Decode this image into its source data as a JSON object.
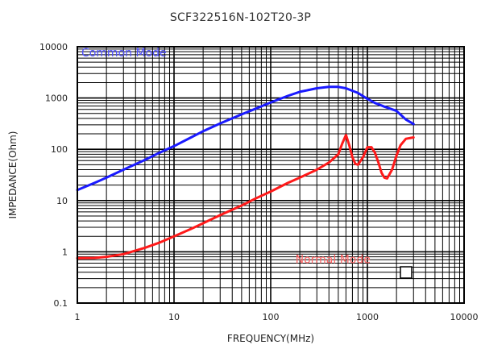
{
  "chart_data": {
    "type": "line",
    "title": "SCF322516N-102T20-3P",
    "xlabel": "FREQUENCY(MHz)",
    "ylabel": "IMPEDANCE(Ohm)",
    "x_scale": "log",
    "y_scale": "log",
    "xlim": [
      1,
      10000
    ],
    "ylim": [
      0.1,
      10000
    ],
    "x_ticks": [
      1,
      10,
      100,
      1000,
      10000
    ],
    "x_tick_labels": [
      "1",
      "10",
      "100",
      "1000",
      "10000"
    ],
    "y_ticks": [
      0.1,
      1,
      10,
      100,
      1000,
      10000
    ],
    "y_tick_labels": [
      "0.1",
      "1",
      "10",
      "100",
      "1000",
      "10000"
    ],
    "grid": true,
    "series": [
      {
        "name": "Common Mode",
        "color": "#1a1aff",
        "x": [
          1,
          1.5,
          2,
          3,
          5,
          7,
          10,
          15,
          20,
          30,
          50,
          70,
          100,
          150,
          200,
          300,
          400,
          500,
          600,
          800,
          1000,
          1200,
          1500,
          2000,
          2500,
          3000
        ],
        "y": [
          16,
          22,
          28,
          40,
          62,
          85,
          115,
          170,
          225,
          320,
          480,
          620,
          820,
          1100,
          1320,
          1550,
          1650,
          1650,
          1550,
          1250,
          960,
          800,
          680,
          560,
          380,
          310
        ]
      },
      {
        "name": "Normal Mode",
        "color": "#ff1a1a",
        "x": [
          1,
          1.5,
          2,
          3,
          5,
          7,
          10,
          15,
          20,
          30,
          50,
          70,
          100,
          150,
          200,
          300,
          400,
          500,
          550,
          600,
          650,
          700,
          750,
          800,
          900,
          1000,
          1100,
          1200,
          1300,
          1400,
          1500,
          1600,
          1800,
          2000,
          2200,
          2500,
          3000
        ],
        "y": [
          0.75,
          0.76,
          0.8,
          0.9,
          1.2,
          1.5,
          2.0,
          2.8,
          3.6,
          5.2,
          8.0,
          11,
          15,
          22,
          28,
          40,
          55,
          80,
          130,
          190,
          120,
          70,
          52,
          50,
          70,
          110,
          110,
          85,
          55,
          35,
          28,
          27,
          40,
          75,
          120,
          160,
          170
        ]
      }
    ],
    "annotations": [
      {
        "text": "Common Mode",
        "color": "#4d4dff",
        "x": 1.1,
        "y": 6500
      },
      {
        "text": "Normal Mode",
        "color": "#ff6666",
        "x": 180,
        "y": 0.6
      }
    ],
    "legend": "none"
  }
}
